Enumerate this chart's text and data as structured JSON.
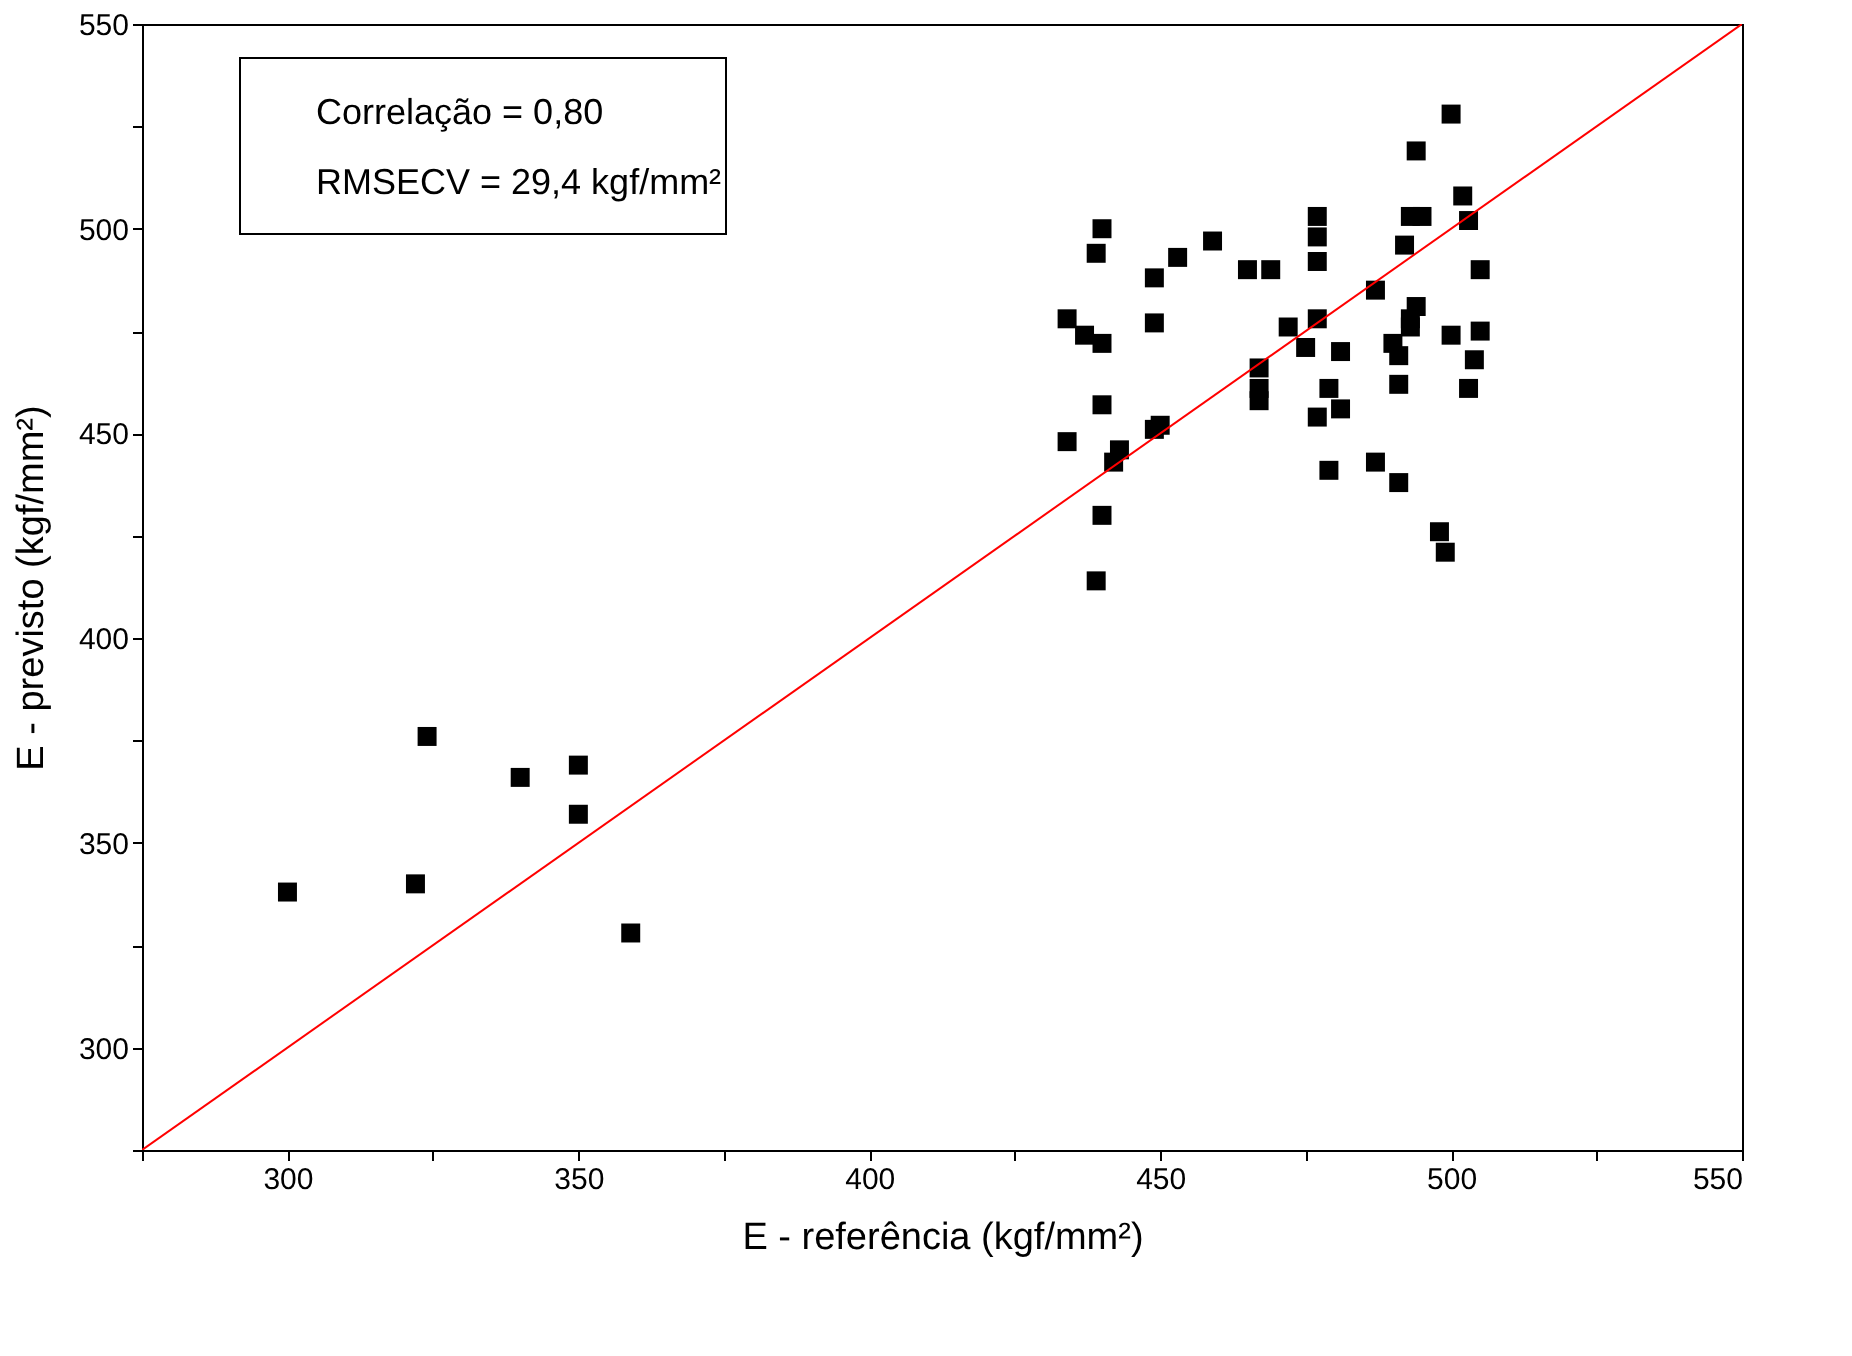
{
  "chart_data": {
    "type": "scatter",
    "xlabel": "E - referência (kgf/mm²)",
    "ylabel": "E - previsto (kgf/mm²)",
    "annotations": [
      "Correlação = 0,80",
      "RMSECV = 29,4 kgf/mm²"
    ],
    "xlim": [
      275,
      550
    ],
    "ylim": [
      275,
      550
    ],
    "xticks": [
      {
        "value": 275,
        "label": null
      },
      300,
      {
        "value": 325,
        "label": null
      },
      350,
      {
        "value": 375,
        "label": null
      },
      400,
      {
        "value": 425,
        "label": null
      },
      450,
      {
        "value": 475,
        "label": null
      },
      500,
      {
        "value": 525,
        "label": null
      },
      550
    ],
    "yticks": [
      {
        "value": 275,
        "label": null
      },
      300,
      {
        "value": 325,
        "label": null
      },
      350,
      {
        "value": 375,
        "label": null
      },
      400,
      {
        "value": 425,
        "label": null
      },
      450,
      {
        "value": 475,
        "label": null
      },
      500,
      {
        "value": 525,
        "label": null
      },
      550
    ],
    "grid": false,
    "series": [
      {
        "marker": "square",
        "color": "#000000",
        "x": [
          300,
          322,
          324,
          340,
          350,
          350,
          359,
          434,
          437,
          440,
          440,
          439,
          440,
          434,
          443,
          442,
          440,
          439,
          449,
          449,
          453,
          459,
          465,
          469,
          449,
          450,
          467,
          467,
          467,
          477,
          477,
          477,
          472,
          477,
          475,
          481,
          479,
          481,
          477,
          479,
          487,
          487,
          491,
          494,
          500,
          502,
          503,
          493,
          495,
          492,
          505,
          494,
          493,
          493,
          490,
          491,
          491,
          500,
          505,
          504,
          503,
          498,
          499
        ],
        "values": [
          338,
          340,
          376,
          366,
          369,
          357,
          328,
          478,
          474,
          472,
          500,
          494,
          457,
          448,
          446,
          443,
          430,
          414,
          488,
          477,
          493,
          497,
          490,
          490,
          451,
          452,
          466,
          461,
          458,
          503,
          498,
          492,
          476,
          478,
          471,
          470,
          461,
          456,
          454,
          441,
          485,
          443,
          438,
          519,
          528,
          508,
          502,
          503,
          503,
          496,
          490,
          481,
          478,
          476,
          472,
          469,
          462,
          474,
          475,
          468,
          461,
          426,
          421
        ]
      },
      {
        "type": "line",
        "color": "#ff0000",
        "line_style": "solid",
        "marker": "none",
        "x": [
          275,
          550
        ],
        "values": [
          275,
          550
        ]
      }
    ]
  }
}
